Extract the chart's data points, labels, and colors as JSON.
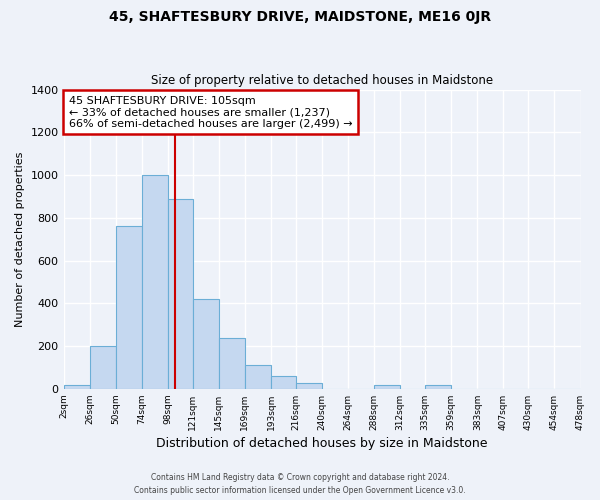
{
  "title": "45, SHAFTESBURY DRIVE, MAIDSTONE, ME16 0JR",
  "subtitle": "Size of property relative to detached houses in Maidstone",
  "xlabel": "Distribution of detached houses by size in Maidstone",
  "ylabel": "Number of detached properties",
  "bin_labels": [
    "2sqm",
    "26sqm",
    "50sqm",
    "74sqm",
    "98sqm",
    "121sqm",
    "145sqm",
    "169sqm",
    "193sqm",
    "216sqm",
    "240sqm",
    "264sqm",
    "288sqm",
    "312sqm",
    "335sqm",
    "359sqm",
    "383sqm",
    "407sqm",
    "430sqm",
    "454sqm",
    "478sqm"
  ],
  "bin_edges": [
    2,
    26,
    50,
    74,
    98,
    121,
    145,
    169,
    193,
    216,
    240,
    264,
    288,
    312,
    335,
    359,
    383,
    407,
    430,
    454,
    478
  ],
  "bar_heights": [
    20,
    200,
    760,
    1000,
    890,
    420,
    240,
    110,
    60,
    25,
    0,
    0,
    20,
    0,
    20,
    0,
    0,
    0,
    0,
    0
  ],
  "bar_color": "#c5d8f0",
  "bar_edge_color": "#6baed6",
  "vline_x": 105,
  "vline_color": "#cc0000",
  "ylim": [
    0,
    1400
  ],
  "yticks": [
    0,
    200,
    400,
    600,
    800,
    1000,
    1200,
    1400
  ],
  "annotation_title": "45 SHAFTESBURY DRIVE: 105sqm",
  "annotation_line1": "← 33% of detached houses are smaller (1,237)",
  "annotation_line2": "66% of semi-detached houses are larger (2,499) →",
  "annotation_box_color": "#ffffff",
  "annotation_box_edge": "#cc0000",
  "footer1": "Contains HM Land Registry data © Crown copyright and database right 2024.",
  "footer2": "Contains public sector information licensed under the Open Government Licence v3.0.",
  "bg_color": "#eef2f9",
  "grid_color": "#ffffff"
}
